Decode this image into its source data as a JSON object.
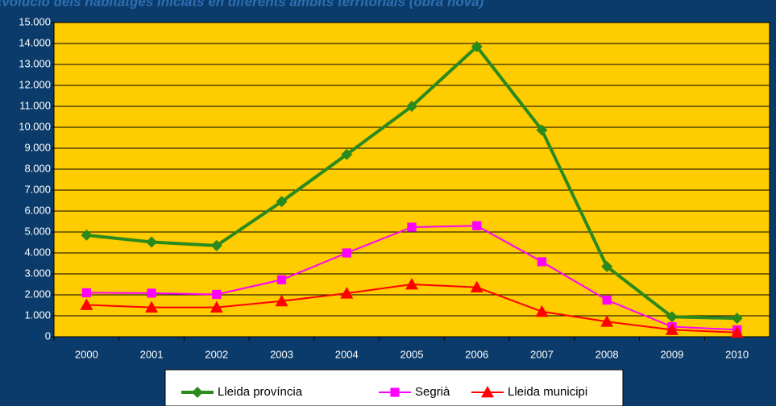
{
  "chart_data": {
    "type": "line",
    "title": "Evolució dels habitatges iniciats en diferents àmbits territorials (obra nova)",
    "categories": [
      "2000",
      "2001",
      "2002",
      "2003",
      "2004",
      "2005",
      "2006",
      "2007",
      "2008",
      "2009",
      "2010"
    ],
    "series": [
      {
        "name": "Lleida província",
        "color": "#2a8a1e",
        "marker": "diamond",
        "values": [
          4850,
          4520,
          4350,
          6450,
          8700,
          11000,
          13850,
          9870,
          3350,
          950,
          880
        ]
      },
      {
        "name": "Segrià",
        "color": "#ff00ff",
        "marker": "square",
        "values": [
          2100,
          2080,
          2020,
          2720,
          4000,
          5230,
          5300,
          3580,
          1750,
          480,
          330
        ]
      },
      {
        "name": "Lleida municipi",
        "color": "#ff0000",
        "marker": "triangle",
        "values": [
          1520,
          1400,
          1400,
          1700,
          2070,
          2500,
          2360,
          1200,
          720,
          330,
          200
        ]
      }
    ],
    "ylim": [
      0,
      15000
    ],
    "yticks": [
      0,
      {
        "value": 1000,
        "label": "1.000"
      },
      {
        "value": 2000,
        "label": "2.000"
      },
      {
        "value": 3000,
        "label": "3.000"
      },
      {
        "value": 4000,
        "label": "4.000"
      },
      {
        "value": 5000,
        "label": "5.000"
      },
      {
        "value": 6000,
        "label": "6.000"
      },
      {
        "value": 7000,
        "label": "7.000"
      },
      {
        "value": 8000,
        "label": "8.000"
      },
      {
        "value": 9000,
        "label": "9.000"
      },
      {
        "value": 10000,
        "label": "10.000"
      },
      {
        "value": 11000,
        "label": "11.000"
      },
      {
        "value": 12000,
        "label": "12.000"
      },
      {
        "value": 13000,
        "label": "13.000"
      },
      {
        "value": 14000,
        "label": "14.000"
      },
      {
        "value": 15000,
        "label": "15.000"
      }
    ],
    "grid": true,
    "legend": "bottom",
    "plot_color": "#ffcc00"
  }
}
